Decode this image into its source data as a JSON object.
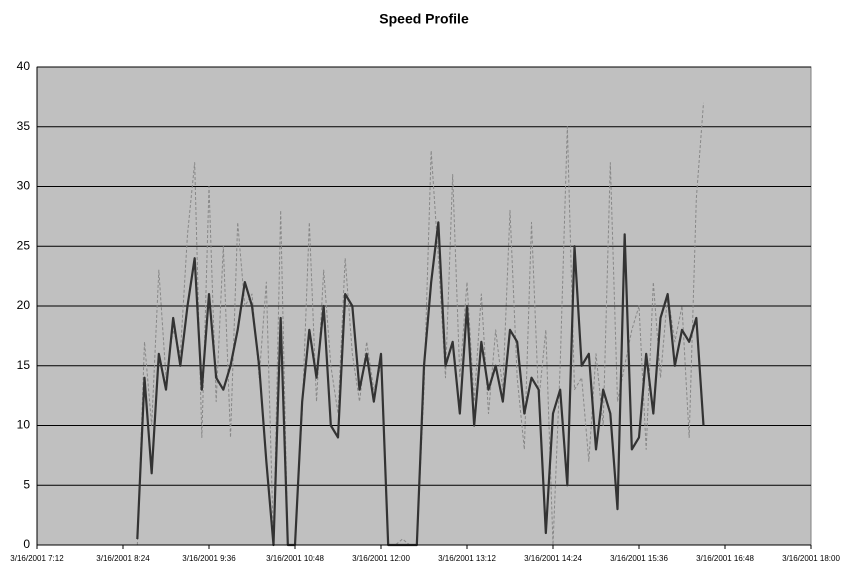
{
  "chart_data": {
    "type": "line",
    "title": "Speed Profile",
    "x": [
      "3/16/2001 8:36",
      "3/16/2001 8:42",
      "3/16/2001 8:48",
      "3/16/2001 8:54",
      "3/16/2001 9:00",
      "3/16/2001 9:06",
      "3/16/2001 9:12",
      "3/16/2001 9:18",
      "3/16/2001 9:24",
      "3/16/2001 9:30",
      "3/16/2001 9:36",
      "3/16/2001 9:42",
      "3/16/2001 9:48",
      "3/16/2001 9:54",
      "3/16/2001 10:00",
      "3/16/2001 10:06",
      "3/16/2001 10:12",
      "3/16/2001 10:18",
      "3/16/2001 10:24",
      "3/16/2001 10:30",
      "3/16/2001 10:36",
      "3/16/2001 10:42",
      "3/16/2001 10:48",
      "3/16/2001 10:54",
      "3/16/2001 11:00",
      "3/16/2001 11:06",
      "3/16/2001 11:12",
      "3/16/2001 11:18",
      "3/16/2001 11:24",
      "3/16/2001 11:30",
      "3/16/2001 11:36",
      "3/16/2001 11:42",
      "3/16/2001 11:48",
      "3/16/2001 11:54",
      "3/16/2001 12:00",
      "3/16/2001 12:06",
      "3/16/2001 12:12",
      "3/16/2001 12:18",
      "3/16/2001 12:24",
      "3/16/2001 12:30",
      "3/16/2001 12:36",
      "3/16/2001 12:42",
      "3/16/2001 12:48",
      "3/16/2001 12:54",
      "3/16/2001 13:00",
      "3/16/2001 13:06",
      "3/16/2001 13:12",
      "3/16/2001 13:18",
      "3/16/2001 13:24",
      "3/16/2001 13:30",
      "3/16/2001 13:36",
      "3/16/2001 13:42",
      "3/16/2001 13:48",
      "3/16/2001 13:54",
      "3/16/2001 14:00",
      "3/16/2001 14:06",
      "3/16/2001 14:12",
      "3/16/2001 14:18",
      "3/16/2001 14:24",
      "3/16/2001 14:30",
      "3/16/2001 14:36",
      "3/16/2001 14:42",
      "3/16/2001 14:48",
      "3/16/2001 14:54",
      "3/16/2001 15:00",
      "3/16/2001 15:06",
      "3/16/2001 15:12",
      "3/16/2001 15:18",
      "3/16/2001 15:24",
      "3/16/2001 15:30",
      "3/16/2001 15:36",
      "3/16/2001 15:42",
      "3/16/2001 15:48",
      "3/16/2001 15:54",
      "3/16/2001 16:00",
      "3/16/2001 16:06",
      "3/16/2001 16:12",
      "3/16/2001 16:18",
      "3/16/2001 16:24",
      "3/16/2001 16:30"
    ],
    "series": [
      {
        "color": "#888888",
        "dashed": true,
        "values": [
          0,
          17,
          10,
          23,
          14,
          18,
          16,
          26,
          32,
          9,
          30,
          12,
          25,
          9,
          27,
          20,
          21,
          14,
          22,
          0,
          28,
          0,
          0,
          11,
          27,
          12,
          23,
          15,
          11,
          24,
          16,
          12,
          17,
          13,
          15,
          0,
          0,
          0.5,
          0,
          0,
          13,
          33,
          24,
          14,
          31,
          14,
          22,
          12,
          21,
          11,
          18,
          13,
          28,
          14,
          8,
          27,
          12,
          18,
          0,
          15,
          35,
          13,
          14,
          7,
          16,
          10,
          32,
          12,
          15,
          18,
          20,
          8,
          22,
          14,
          21,
          17,
          20,
          9,
          29,
          37
        ]
      },
      {
        "color": "#333333",
        "dashed": false,
        "values": [
          0.5,
          14,
          6,
          16,
          13,
          19,
          15,
          20,
          24,
          13,
          21,
          14,
          13,
          15,
          18,
          22,
          20,
          15,
          7,
          0,
          19,
          0,
          0,
          12,
          18,
          14,
          20,
          10,
          9,
          21,
          20,
          13,
          16,
          12,
          16,
          0,
          0,
          0,
          0,
          0,
          15,
          22,
          27,
          15,
          17,
          11,
          20,
          10,
          17,
          13,
          15,
          12,
          18,
          17,
          11,
          14,
          13,
          1,
          11,
          13,
          5,
          25,
          15,
          16,
          8,
          13,
          11,
          3,
          26,
          8,
          9,
          16,
          11,
          19,
          21,
          15,
          18,
          17,
          19,
          10
        ]
      }
    ],
    "xlim": [
      "3/16/2001 7:12",
      "3/16/2001 18:00"
    ],
    "xticks": [
      "3/16/2001 7:12",
      "3/16/2001 8:24",
      "3/16/2001 9:36",
      "3/16/2001 10:48",
      "3/16/2001 12:00",
      "3/16/2001 13:12",
      "3/16/2001 14:24",
      "3/16/2001 15:36",
      "3/16/2001 16:48",
      "3/16/2001 18:00"
    ],
    "ylim": [
      0,
      40
    ],
    "yticks": [
      0,
      5,
      10,
      15,
      20,
      25,
      30,
      35,
      40
    ],
    "grid": true
  }
}
